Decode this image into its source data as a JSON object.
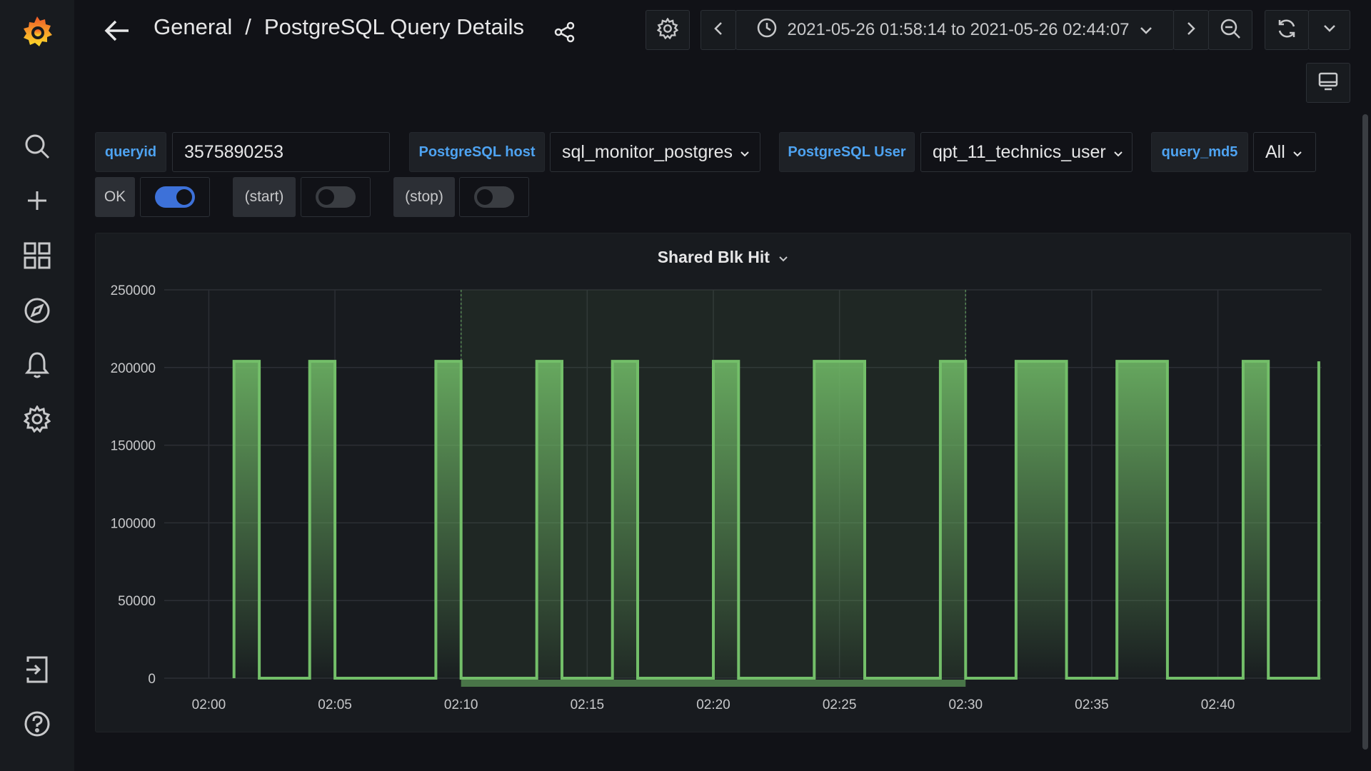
{
  "breadcrumb": {
    "folder": "General",
    "separator": "/",
    "dashboard": "PostgreSQL Query Details"
  },
  "time_range": {
    "label": "2021-05-26 01:58:14 to 2021-05-26 02:44:07"
  },
  "variables": {
    "queryid": {
      "label": "queryid",
      "value": "3575890253"
    },
    "host": {
      "label": "PostgreSQL host",
      "value": "sql_monitor_postgres"
    },
    "user": {
      "label": "PostgreSQL User",
      "value": "qpt_11_technics_user"
    },
    "md5": {
      "label": "query_md5",
      "value": "All"
    }
  },
  "annotations": [
    {
      "label": "OK",
      "enabled": true
    },
    {
      "label": "(start)",
      "enabled": false
    },
    {
      "label": "(stop)",
      "enabled": false
    }
  ],
  "colors": {
    "accent": "#3d71d9",
    "series": "#73bf69",
    "link": "#4ea3f1"
  },
  "panel": {
    "title": "Shared Blk Hit"
  },
  "chart_data": {
    "type": "area",
    "title": "Shared Blk Hit",
    "xlabel": "",
    "ylabel": "",
    "ylim": [
      0,
      250000
    ],
    "yticks": [
      "250000",
      "200000",
      "150000",
      "100000",
      "50000",
      "0"
    ],
    "xticks": [
      "02:00",
      "02:05",
      "02:10",
      "02:15",
      "02:20",
      "02:25",
      "02:30",
      "02:35",
      "02:40"
    ],
    "x_range": [
      "01:58:14",
      "02:44:07"
    ],
    "grid": true,
    "step": true,
    "highlight_range": [
      "02:10",
      "02:30"
    ],
    "series": [
      {
        "points": [
          [
            "02:01",
            0
          ],
          [
            "02:01",
            204000
          ],
          [
            "02:02",
            204000
          ],
          [
            "02:02",
            0
          ],
          [
            "02:04",
            0
          ],
          [
            "02:04",
            204000
          ],
          [
            "02:05",
            204000
          ],
          [
            "02:05",
            0
          ],
          [
            "02:09",
            0
          ],
          [
            "02:09",
            204000
          ],
          [
            "02:10",
            204000
          ],
          [
            "02:10",
            0
          ],
          [
            "02:13",
            0
          ],
          [
            "02:13",
            204000
          ],
          [
            "02:14",
            204000
          ],
          [
            "02:14",
            0
          ],
          [
            "02:16",
            0
          ],
          [
            "02:16",
            204000
          ],
          [
            "02:17",
            204000
          ],
          [
            "02:17",
            0
          ],
          [
            "02:20",
            0
          ],
          [
            "02:20",
            204000
          ],
          [
            "02:21",
            204000
          ],
          [
            "02:21",
            0
          ],
          [
            "02:24",
            0
          ],
          [
            "02:24",
            204000
          ],
          [
            "02:26",
            204000
          ],
          [
            "02:26",
            0
          ],
          [
            "02:29",
            0
          ],
          [
            "02:29",
            204000
          ],
          [
            "02:30",
            204000
          ],
          [
            "02:30",
            0
          ],
          [
            "02:32",
            0
          ],
          [
            "02:32",
            204000
          ],
          [
            "02:34",
            204000
          ],
          [
            "02:34",
            0
          ],
          [
            "02:36",
            0
          ],
          [
            "02:36",
            204000
          ],
          [
            "02:38",
            204000
          ],
          [
            "02:38",
            0
          ],
          [
            "02:41",
            0
          ],
          [
            "02:41",
            204000
          ],
          [
            "02:42",
            204000
          ],
          [
            "02:42",
            0
          ],
          [
            "02:44",
            0
          ],
          [
            "02:44",
            204000
          ]
        ]
      }
    ]
  }
}
